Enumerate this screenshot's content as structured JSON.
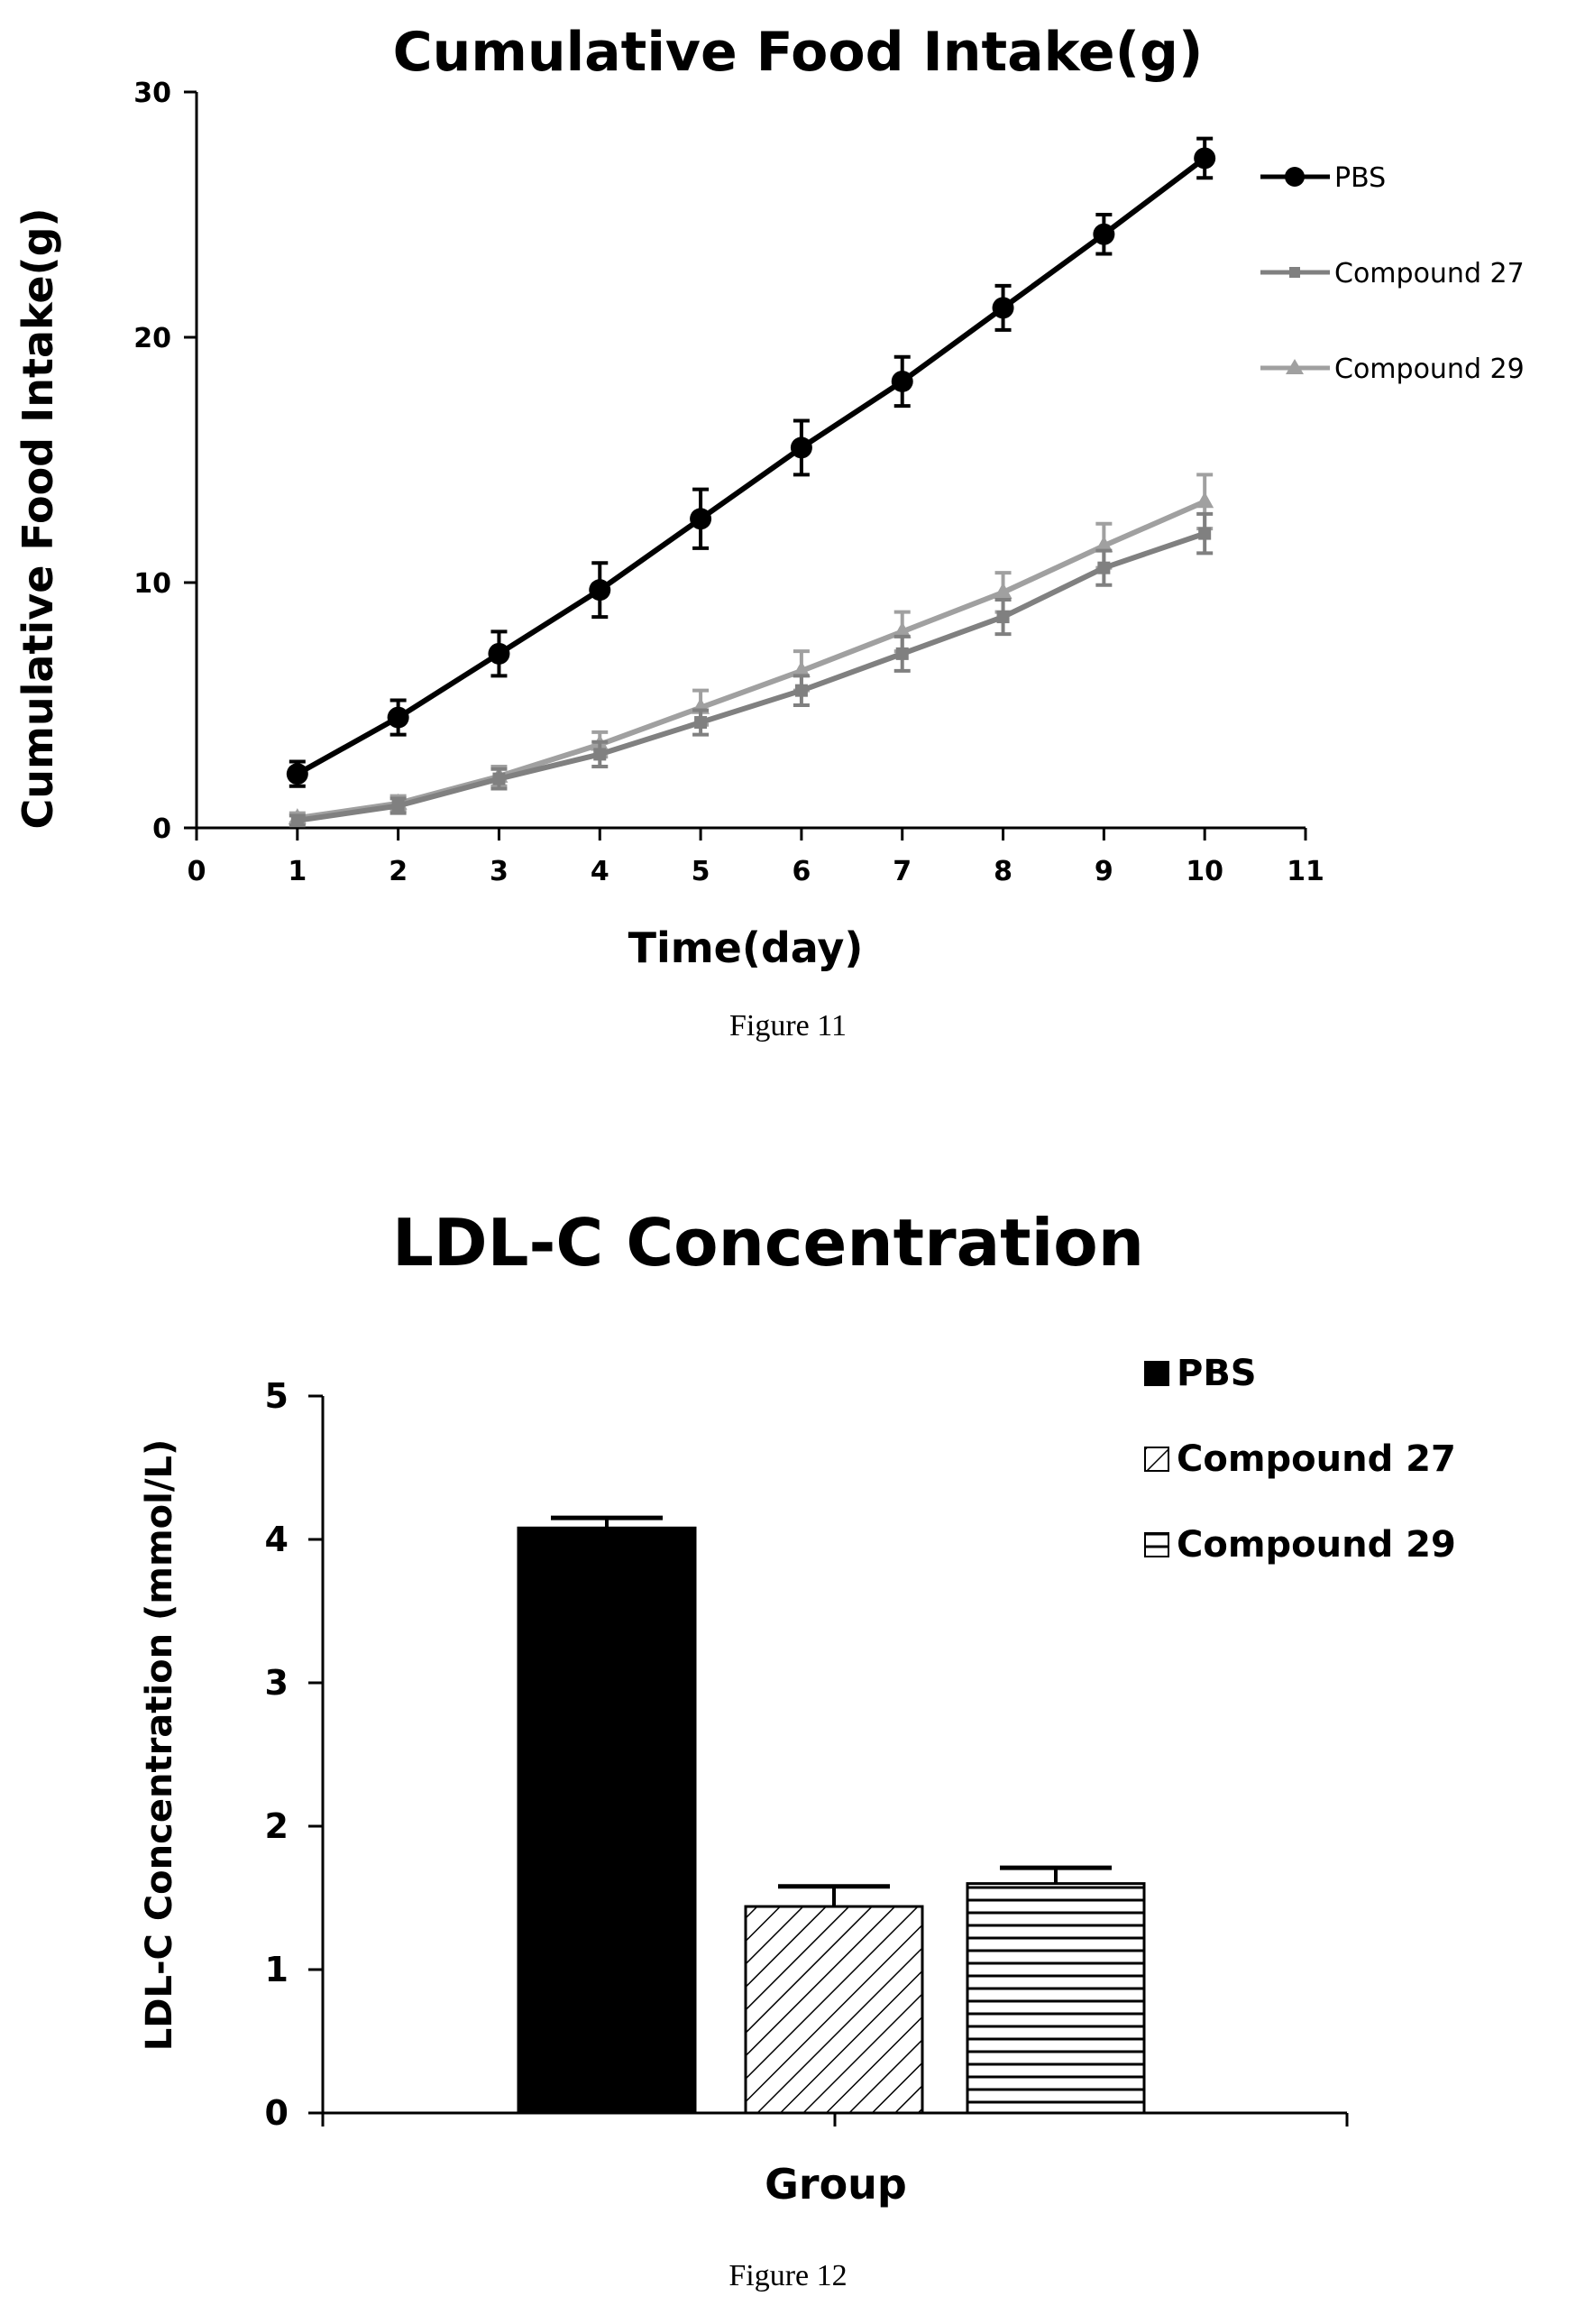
{
  "chart_data": [
    {
      "type": "line",
      "title": "Cumulative Food Intake(g)",
      "xlabel": "Time(day)",
      "ylabel": "Cumulative Food Intake(g)",
      "xlim": [
        0,
        11
      ],
      "ylim": [
        0,
        30
      ],
      "x_ticks": [
        0,
        1,
        2,
        3,
        4,
        5,
        6,
        7,
        8,
        9,
        10,
        11
      ],
      "y_ticks": [
        0,
        10,
        20,
        30
      ],
      "grid": false,
      "legend_position": "right",
      "x": [
        1,
        2,
        3,
        4,
        5,
        6,
        7,
        8,
        9,
        10
      ],
      "series": [
        {
          "name": "PBS",
          "marker": "circle",
          "color": "#000000",
          "values": [
            2.2,
            4.5,
            7.1,
            9.7,
            12.6,
            15.5,
            18.2,
            21.2,
            24.2,
            27.3
          ],
          "errors": [
            0.5,
            0.7,
            0.9,
            1.1,
            1.2,
            1.1,
            1.0,
            0.9,
            0.8,
            0.8
          ]
        },
        {
          "name": "Compound 27",
          "marker": "square",
          "color": "#808080",
          "values": [
            0.3,
            0.9,
            2.0,
            3.0,
            4.3,
            5.6,
            7.1,
            8.6,
            10.6,
            12.0
          ],
          "errors": [
            0.2,
            0.3,
            0.4,
            0.5,
            0.5,
            0.6,
            0.7,
            0.7,
            0.7,
            0.8
          ]
        },
        {
          "name": "Compound 29",
          "marker": "triangle",
          "color": "#a0a0a0",
          "values": [
            0.4,
            1.0,
            2.1,
            3.4,
            4.9,
            6.4,
            8.0,
            9.6,
            11.5,
            13.3
          ],
          "errors": [
            0.2,
            0.3,
            0.4,
            0.5,
            0.7,
            0.8,
            0.8,
            0.8,
            0.9,
            1.1
          ]
        }
      ],
      "caption": "Figure 11"
    },
    {
      "type": "bar",
      "title": "LDL-C Concentration",
      "xlabel": "Group",
      "ylabel": "LDL-C Concentration (mmol/L)",
      "ylim": [
        0,
        5
      ],
      "y_ticks": [
        0,
        1,
        2,
        3,
        4,
        5
      ],
      "grid": false,
      "legend_position": "top-right",
      "series": [
        {
          "name": "PBS",
          "value": 4.08,
          "error": 0.07,
          "fill": "solid",
          "color": "#000000"
        },
        {
          "name": "Compound 27",
          "value": 1.44,
          "error": 0.14,
          "fill": "diagonal-hatch",
          "color": "#000000"
        },
        {
          "name": "Compound 29",
          "value": 1.6,
          "error": 0.11,
          "fill": "horizontal-hatch",
          "color": "#000000"
        }
      ],
      "caption": "Figure 12"
    }
  ]
}
